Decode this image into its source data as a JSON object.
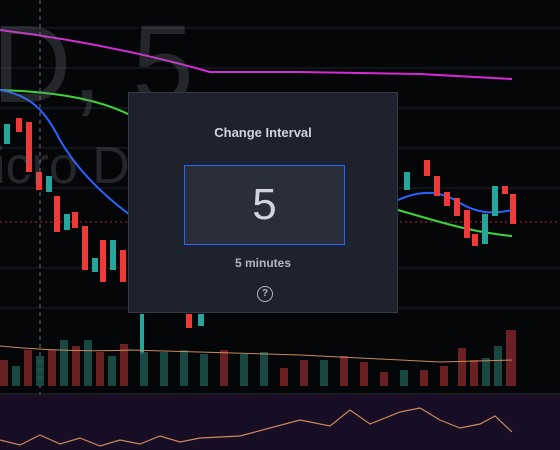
{
  "watermark": {
    "symbol": "D, 5",
    "name": "icro D"
  },
  "dialog": {
    "title": "Change Interval",
    "value": "5",
    "description": "5 minutes",
    "help": "?"
  }
}
